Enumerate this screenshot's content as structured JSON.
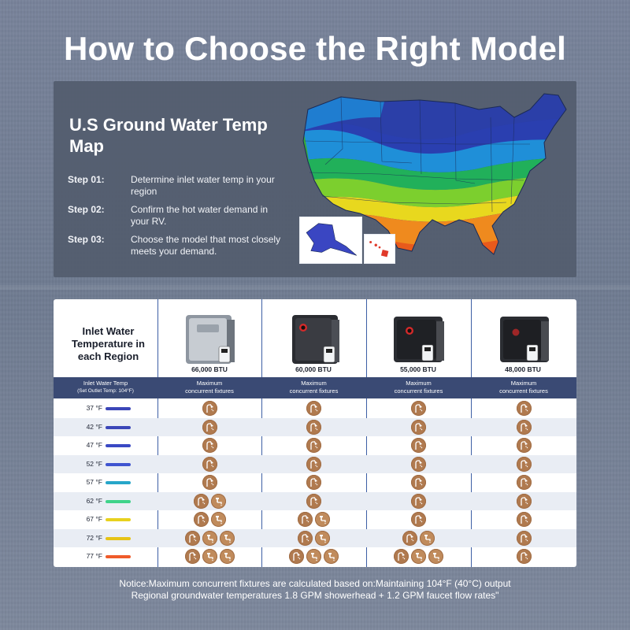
{
  "title": "How to Choose the Right Model",
  "map_section": {
    "heading": "U.S Ground Water Temp Map",
    "steps": [
      {
        "label": "Step 01:",
        "text": "Determine inlet water temp in your region"
      },
      {
        "label": "Step 02:",
        "text": "Confirm the hot water demand in your RV."
      },
      {
        "label": "Step 03:",
        "text": "Choose the model that most closely meets your demand."
      }
    ]
  },
  "table": {
    "header_label": "Inlet Water Temperature in each Region",
    "subheader_label_line1": "Inlet Water Temp",
    "subheader_label_line2": "(Set Outlet Temp: 104°F)",
    "models": [
      {
        "btu": "66,000 BTU",
        "sub_line1": "Maximum",
        "sub_line2": "concurrent fixtures",
        "body_color": "#8e96a0",
        "face": "#c7ccd2"
      },
      {
        "btu": "60,000 BTU",
        "sub_line1": "Maximum",
        "sub_line2": "concurrent fixtures",
        "body_color": "#2a2c31",
        "face": "#3a3c42"
      },
      {
        "btu": "55,000 BTU",
        "sub_line1": "Maximum",
        "sub_line2": "concurrent fixtures",
        "body_color": "#2b2d32",
        "face": "#1f2125"
      },
      {
        "btu": "48,000 BTU",
        "sub_line1": "Maximum",
        "sub_line2": "concurrent fixtures",
        "body_color": "#2b2d32",
        "face": "#1e1f23"
      }
    ],
    "rows": [
      {
        "temp": "37 °F",
        "color": "#3b46b8",
        "fixtures": [
          1,
          1,
          1,
          1
        ]
      },
      {
        "temp": "42 °F",
        "color": "#3b46b8",
        "fixtures": [
          1,
          1,
          1,
          1
        ]
      },
      {
        "temp": "47 °F",
        "color": "#3a49c4",
        "fixtures": [
          1,
          1,
          1,
          1
        ]
      },
      {
        "temp": "52 °F",
        "color": "#3f54d0",
        "fixtures": [
          1,
          1,
          1,
          1
        ]
      },
      {
        "temp": "57 °F",
        "color": "#27a6c9",
        "fixtures": [
          1,
          1,
          1,
          1
        ]
      },
      {
        "temp": "62 °F",
        "color": "#3fd38a",
        "fixtures": [
          2,
          1,
          1,
          1
        ]
      },
      {
        "temp": "67 °F",
        "color": "#e8d11e",
        "fixtures": [
          2,
          2,
          1,
          1
        ]
      },
      {
        "temp": "72 °F",
        "color": "#e6c315",
        "fixtures": [
          3,
          2,
          2,
          1
        ]
      },
      {
        "temp": "77 °F",
        "color": "#ef5b2a",
        "fixtures": [
          3,
          3,
          3,
          1
        ]
      }
    ]
  },
  "notice_line1": "Notice:Maximum concurrent fixtures are calculated based on:Maintaining 104°F (40°C) output",
  "notice_line2": "Regional groundwater temperatures 1.8 GPM showerhead + 1.2 GPM faucet flow rates\"",
  "colors": {
    "accent_navy": "#3a4a74",
    "fixture_brown": "#b07a4f",
    "map_card": "#535c6e"
  },
  "icons": {
    "fixture_1": "showerhead-icon",
    "fixture_2": "faucet-icon"
  }
}
